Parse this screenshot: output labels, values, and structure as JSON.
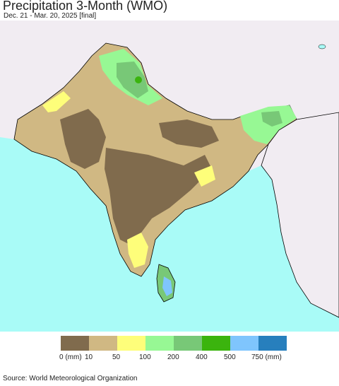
{
  "header": {
    "title": "Precipitation 3-Month (WMO)",
    "subtitle": "Dec. 21 - Mar. 20, 2025 [final]"
  },
  "map": {
    "ocean_color": "#a9fbf7",
    "outside_land_color": "#f1ecf2",
    "coast_color": "#000000"
  },
  "legend": {
    "colors": [
      "#806b4d",
      "#d0b883",
      "#fefe7a",
      "#97f894",
      "#78c877",
      "#3bb40e",
      "#7fc5fd",
      "#277fbd"
    ],
    "labels": [
      "0 (mm)",
      "10",
      "50",
      "100",
      "200",
      "400",
      "500",
      "750 (mm)"
    ]
  },
  "footer": {
    "source": "Source: World Meteorological Organization"
  }
}
